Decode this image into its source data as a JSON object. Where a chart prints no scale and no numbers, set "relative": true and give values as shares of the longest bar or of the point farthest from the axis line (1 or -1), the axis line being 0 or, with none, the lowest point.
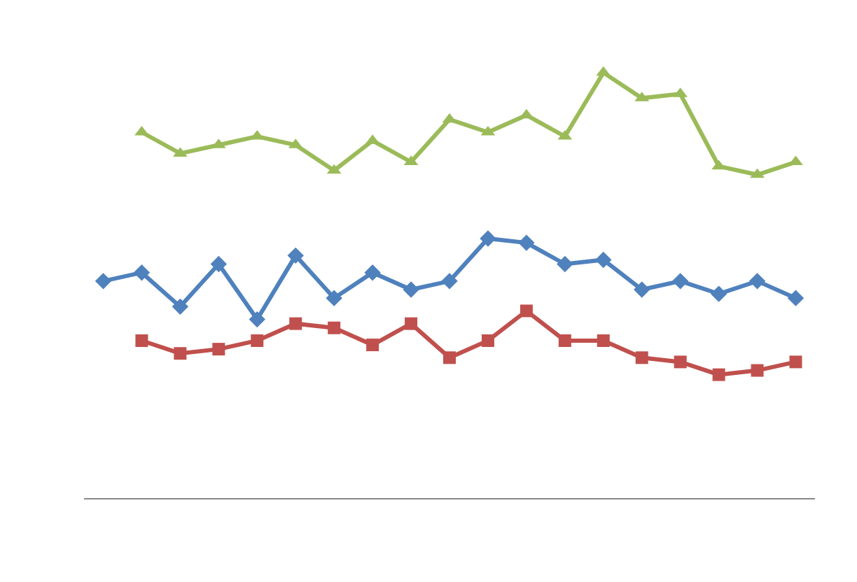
{
  "chart_data": {
    "type": "line",
    "relative": true,
    "categories": [
      null,
      null,
      null,
      null,
      null,
      null,
      null,
      null,
      null,
      null,
      null,
      null,
      null,
      null,
      null,
      null,
      null,
      null,
      null
    ],
    "series": [
      {
        "color": "#9bbb59",
        "marker": "triangle",
        "values": [
          null,
          0.86,
          0.81,
          0.83,
          0.85,
          0.83,
          0.77,
          0.84,
          0.79,
          0.89,
          0.86,
          0.9,
          0.85,
          1,
          0.94,
          0.95,
          0.78,
          0.76,
          0.79
        ]
      },
      {
        "color": "#c0504d",
        "marker": "square",
        "values": [
          null,
          0.37,
          0.34,
          0.35,
          0.37,
          0.41,
          0.4,
          0.36,
          0.41,
          0.33,
          0.37,
          0.44,
          0.37,
          0.37,
          0.33,
          0.32,
          0.29,
          0.3,
          0.32
        ]
      },
      {
        "color": "#4f81bd",
        "marker": "diamond",
        "values": [
          0.51,
          0.53,
          0.45,
          0.55,
          0.42,
          0.57,
          0.47,
          0.53,
          0.49,
          0.51,
          0.61,
          0.6,
          0.55,
          0.56,
          0.49,
          0.51,
          0.48,
          0.51,
          0.47
        ]
      }
    ],
    "line_style": "solid"
  }
}
